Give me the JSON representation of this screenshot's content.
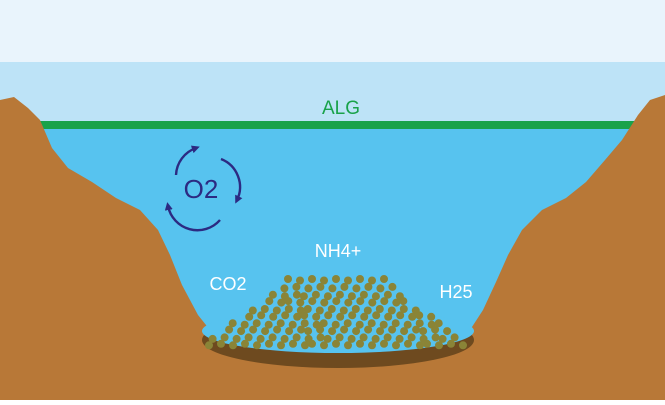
{
  "labels": {
    "algae": "ALG",
    "oxygen": "O2",
    "carbon_dioxide": "CO2",
    "ammonium": "NH4+",
    "hydrogen_sulfide": "H25"
  },
  "colors": {
    "sky_top": "#e9f4fc",
    "sky": "#bde3f7",
    "water": "#57c3ef",
    "algae": "#19a24a",
    "soil": "#b87837",
    "sediment_shadow": "#6e4a1f",
    "particles": "#8a8437",
    "oxygen_cycle": "#2c2a82",
    "text_white": "#ffffff"
  }
}
